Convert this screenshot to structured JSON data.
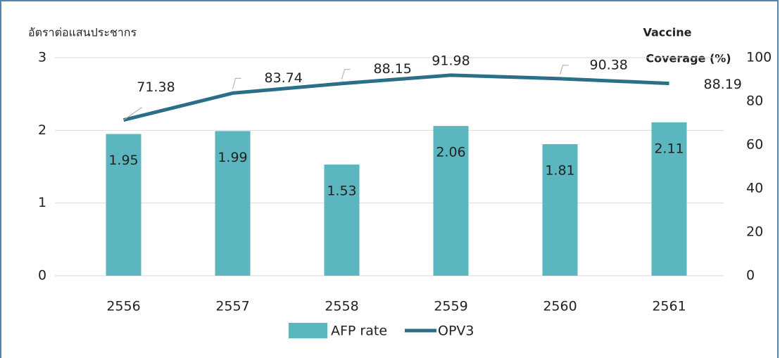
{
  "chart_data": {
    "type": "bar-line",
    "ylabel": "อัตราต่อแสนประชากร",
    "y2label": [
      "Vaccine",
      "Coverage (%)"
    ],
    "categories": [
      "2556",
      "2557",
      "2558",
      "2559",
      "2560",
      "2561"
    ],
    "series": [
      {
        "name": "AFP rate",
        "color": "#5bb6c0",
        "type": "bar",
        "values": [
          1.95,
          1.99,
          1.53,
          2.06,
          1.81,
          2.11
        ]
      },
      {
        "name": "OPV3",
        "color": "#2a6e87",
        "type": "line",
        "axis": "y2",
        "values": [
          71.38,
          83.74,
          88.15,
          91.98,
          90.38,
          88.19
        ]
      }
    ],
    "ylim": [
      0,
      3
    ],
    "yticks": [
      0,
      1,
      2,
      3
    ],
    "y2lim": [
      0,
      100
    ],
    "y2ticks": [
      0,
      20,
      40,
      60,
      80,
      100
    ],
    "grid": true,
    "legend": "bottom"
  }
}
